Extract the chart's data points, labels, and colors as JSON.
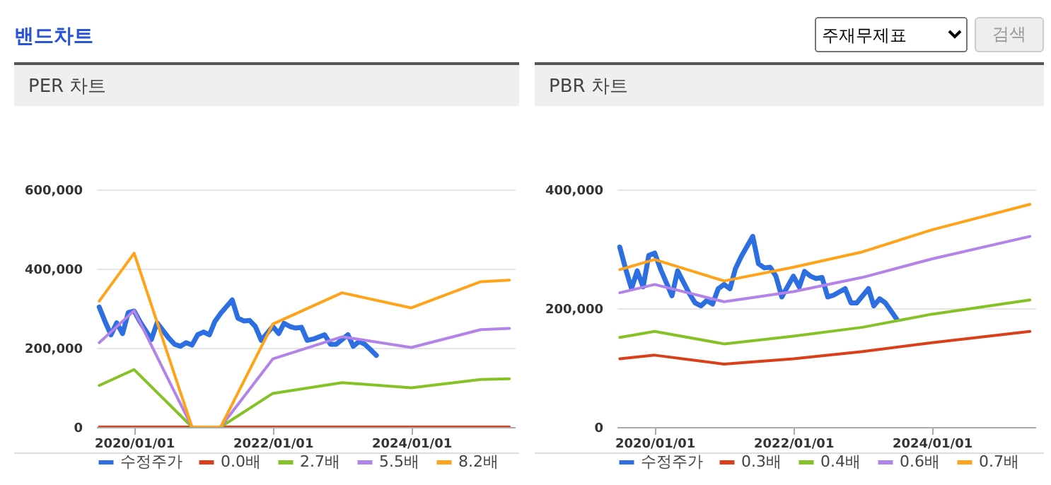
{
  "chart_data": [
    {
      "type": "line",
      "title": "PER 차트",
      "annotations": [
        "밴드차트",
        "주재무제표",
        "검색"
      ],
      "xlim": [
        "2019-06-15",
        "2025-06-30"
      ],
      "xticks": [
        {
          "value": "2020-01-01",
          "label": "2020/01/01"
        },
        {
          "value": "2022-01-01",
          "label": "2022/01/01"
        },
        {
          "value": "2024-01-01",
          "label": "2024/01/01"
        }
      ],
      "ylim": [
        0,
        600000
      ],
      "yticks": [
        {
          "value": 0,
          "label": "0"
        },
        {
          "value": 200000,
          "label": "200,000"
        },
        {
          "value": 400000,
          "label": "400,000"
        },
        {
          "value": 600000,
          "label": "600,000"
        }
      ],
      "grid": "y",
      "legend": "bottom",
      "series": [
        {
          "name": "수정주가",
          "color": "#2d6ee0",
          "x": [
            "2019-07",
            "2019-08",
            "2019-09",
            "2019-10",
            "2019-11",
            "2019-12",
            "2020-01",
            "2020-02",
            "2020-04",
            "2020-05",
            "2020-07",
            "2020-08",
            "2020-09",
            "2020-10",
            "2020-11",
            "2020-12",
            "2021-01",
            "2021-02",
            "2021-03",
            "2021-04",
            "2021-06",
            "2021-07",
            "2021-08",
            "2021-09",
            "2021-10",
            "2021-11",
            "2022-01",
            "2022-02",
            "2022-03",
            "2022-04",
            "2022-05",
            "2022-06",
            "2022-07",
            "2022-08",
            "2022-10",
            "2022-11",
            "2022-12",
            "2023-02",
            "2023-03",
            "2023-04",
            "2023-05",
            "2023-06",
            "2023-07"
          ],
          "values": [
            303000,
            266000,
            233000,
            263000,
            236000,
            289000,
            293000,
            266000,
            221000,
            263000,
            225000,
            209000,
            204000,
            213000,
            207000,
            233000,
            240000,
            233000,
            266000,
            287000,
            321000,
            275000,
            268000,
            269000,
            254000,
            219000,
            254000,
            236000,
            262000,
            254000,
            250000,
            252000,
            219000,
            222000,
            233000,
            209000,
            209000,
            233000,
            204000,
            216000,
            209000,
            195000,
            181000
          ]
        },
        {
          "name": "0.0배",
          "color": "#d9401a",
          "x": [
            "2019-07",
            "2020-01",
            "2020-11",
            "2021-04",
            "2022-01",
            "2023-01",
            "2024-01",
            "2025-01",
            "2025-06"
          ],
          "values": [
            0,
            0,
            0,
            0,
            0,
            0,
            0,
            0,
            0
          ]
        },
        {
          "name": "2.7배",
          "color": "#84c225",
          "x": [
            "2019-07",
            "2020-01",
            "2020-11",
            "2021-04",
            "2022-01",
            "2023-01",
            "2024-01",
            "2025-01",
            "2025-06"
          ],
          "values": [
            105000,
            145000,
            0,
            0,
            85000,
            112000,
            99000,
            120000,
            122000
          ]
        },
        {
          "name": "5.5배",
          "color": "#b283e8",
          "x": [
            "2019-07",
            "2020-01",
            "2020-11",
            "2021-04",
            "2022-01",
            "2023-01",
            "2024-01",
            "2025-01",
            "2025-06"
          ],
          "values": [
            213000,
            294000,
            0,
            0,
            172000,
            228000,
            201000,
            246000,
            249000
          ]
        },
        {
          "name": "8.2배",
          "color": "#ffa31a",
          "x": [
            "2019-07",
            "2020-01",
            "2020-11",
            "2021-04",
            "2022-01",
            "2023-01",
            "2024-01",
            "2025-01",
            "2025-06"
          ],
          "values": [
            318000,
            439000,
            0,
            0,
            260000,
            339000,
            301000,
            367000,
            371000
          ]
        }
      ]
    },
    {
      "type": "line",
      "title": "PBR 차트",
      "xlim": [
        "2019-06-15",
        "2025-06-30"
      ],
      "xticks": [
        {
          "value": "2020-01-01",
          "label": "2020/01/01"
        },
        {
          "value": "2022-01-01",
          "label": "2022/01/01"
        },
        {
          "value": "2024-01-01",
          "label": "2024/01/01"
        }
      ],
      "ylim": [
        0,
        400000
      ],
      "yticks": [
        {
          "value": 0,
          "label": "0"
        },
        {
          "value": 200000,
          "label": "200,000"
        },
        {
          "value": 400000,
          "label": "400,000"
        }
      ],
      "grid": "y",
      "legend": "bottom",
      "series": [
        {
          "name": "수정주가",
          "color": "#2d6ee0",
          "x": [
            "2019-07",
            "2019-08",
            "2019-09",
            "2019-10",
            "2019-11",
            "2019-12",
            "2020-01",
            "2020-02",
            "2020-04",
            "2020-05",
            "2020-07",
            "2020-08",
            "2020-09",
            "2020-10",
            "2020-11",
            "2020-12",
            "2021-01",
            "2021-02",
            "2021-03",
            "2021-04",
            "2021-06",
            "2021-07",
            "2021-08",
            "2021-09",
            "2021-10",
            "2021-11",
            "2022-01",
            "2022-02",
            "2022-03",
            "2022-04",
            "2022-05",
            "2022-06",
            "2022-07",
            "2022-08",
            "2022-10",
            "2022-11",
            "2022-12",
            "2023-02",
            "2023-03",
            "2023-04",
            "2023-05",
            "2023-06",
            "2023-07"
          ],
          "values": [
            303000,
            266000,
            233000,
            263000,
            236000,
            289000,
            293000,
            266000,
            221000,
            263000,
            225000,
            209000,
            204000,
            213000,
            207000,
            233000,
            240000,
            233000,
            266000,
            287000,
            321000,
            275000,
            268000,
            269000,
            254000,
            219000,
            254000,
            236000,
            262000,
            254000,
            250000,
            252000,
            219000,
            222000,
            233000,
            209000,
            209000,
            233000,
            204000,
            216000,
            209000,
            195000,
            181000
          ]
        },
        {
          "name": "0.3배",
          "color": "#d9401a",
          "x": [
            "2019-07",
            "2020-01",
            "2021-01",
            "2022-01",
            "2023-01",
            "2024-01",
            "2025-06"
          ],
          "values": [
            115000,
            121000,
            106000,
            115000,
            127000,
            142000,
            161000
          ]
        },
        {
          "name": "0.4배",
          "color": "#84c225",
          "x": [
            "2019-07",
            "2020-01",
            "2021-01",
            "2022-01",
            "2023-01",
            "2024-01",
            "2025-06"
          ],
          "values": [
            151000,
            161000,
            140000,
            153000,
            168000,
            190000,
            214000
          ]
        },
        {
          "name": "0.6배",
          "color": "#b283e8",
          "x": [
            "2019-07",
            "2020-01",
            "2021-01",
            "2022-01",
            "2023-01",
            "2024-01",
            "2025-06"
          ],
          "values": [
            226000,
            240000,
            211000,
            228000,
            252000,
            283000,
            321000
          ]
        },
        {
          "name": "0.7배",
          "color": "#ffa31a",
          "x": [
            "2019-07",
            "2020-01",
            "2021-01",
            "2022-01",
            "2023-01",
            "2024-01",
            "2025-06"
          ],
          "values": [
            265000,
            282000,
            246000,
            269000,
            295000,
            332000,
            375000
          ]
        }
      ]
    }
  ]
}
